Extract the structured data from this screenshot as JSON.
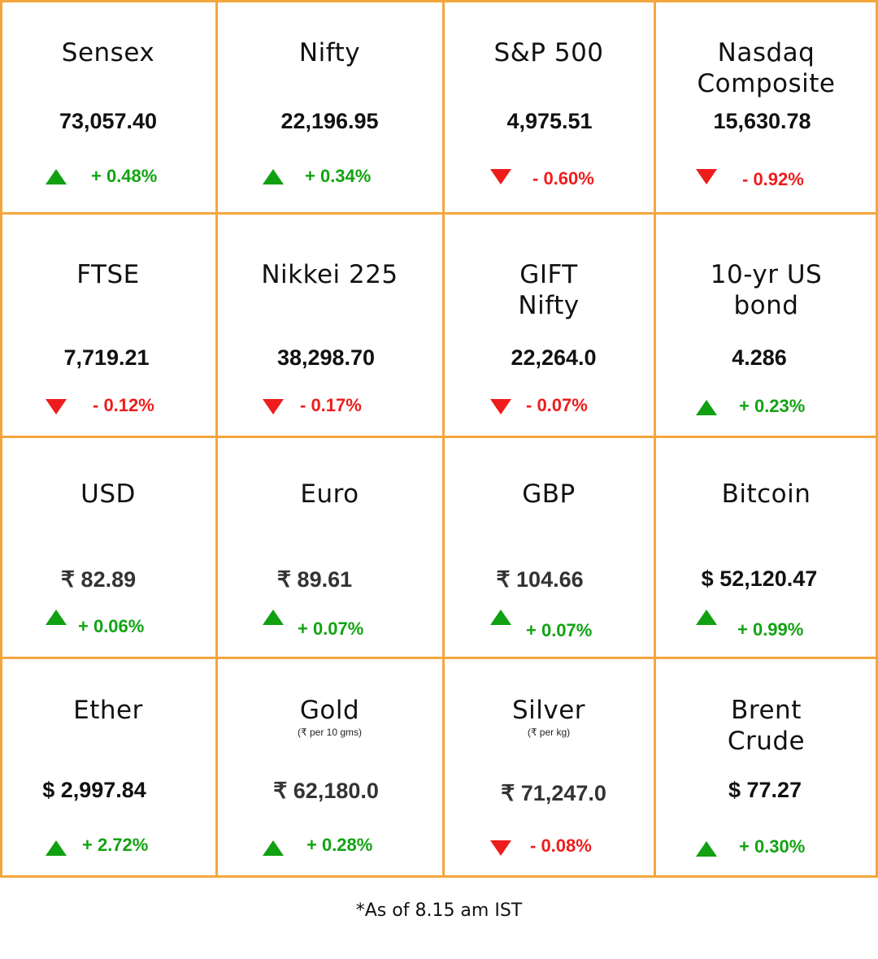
{
  "colors": {
    "border": "#f4a63c",
    "up": "#12a312",
    "down": "#ee1c1c"
  },
  "cells": [
    {
      "title": "Sensex",
      "value": "73,057.40",
      "change": "+ 0.48%",
      "direction": "up"
    },
    {
      "title": "Nifty",
      "value": "22,196.95",
      "change": "+ 0.34%",
      "direction": "up"
    },
    {
      "title": "S&P 500",
      "value": "4,975.51",
      "change": "- 0.60%",
      "direction": "down"
    },
    {
      "title": "Nasdaq Composite",
      "value": "15,630.78",
      "change": "- 0.92%",
      "direction": "down"
    },
    {
      "title": "FTSE",
      "value": "7,719.21",
      "change": "- 0.12%",
      "direction": "down"
    },
    {
      "title": "Nikkei 225",
      "value": "38,298.70",
      "change": "- 0.17%",
      "direction": "down"
    },
    {
      "title": "GIFT Nifty",
      "value": "22,264.0",
      "change": "- 0.07%",
      "direction": "down"
    },
    {
      "title": "10-yr US bond",
      "value": "4.286",
      "change": "+ 0.23%",
      "direction": "up"
    },
    {
      "title": "USD",
      "value": "₹ 82.89",
      "change": "+ 0.06%",
      "direction": "up"
    },
    {
      "title": "Euro",
      "value": "₹ 89.61",
      "change": "+ 0.07%",
      "direction": "up"
    },
    {
      "title": "GBP",
      "value": "₹ 104.66",
      "change": "+ 0.07%",
      "direction": "up"
    },
    {
      "title": "Bitcoin",
      "value": "$ 52,120.47",
      "change": "+ 0.99%",
      "direction": "up"
    },
    {
      "title": "Ether",
      "value": "$ 2,997.84",
      "change": "+ 2.72%",
      "direction": "up"
    },
    {
      "title": "Gold",
      "subnote": "(₹ per 10 gms)",
      "value": "₹ 62,180.0",
      "change": "+ 0.28%",
      "direction": "up"
    },
    {
      "title": "Silver",
      "subnote": "(₹ per kg)",
      "value": "₹ 71,247.0",
      "change": "- 0.08%",
      "direction": "down"
    },
    {
      "title": "Brent Crude",
      "value": "$ 77.27",
      "change": "+ 0.30%",
      "direction": "up"
    }
  ],
  "footnote": "*As of 8.15 am IST"
}
